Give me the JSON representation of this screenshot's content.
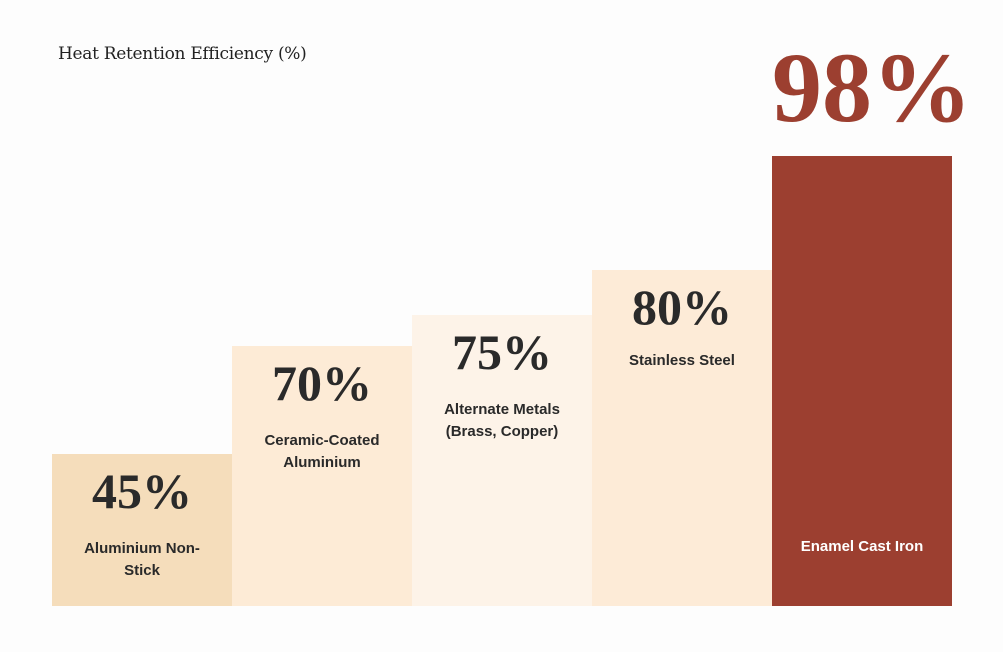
{
  "chart_data": {
    "type": "bar",
    "title": "Heat Retention Efficiency (%)",
    "categories": [
      "Aluminium Non-Stick",
      "Ceramic-Coated Aluminium",
      "Alternate Metals (Brass, Copper)",
      "Stainless Steel",
      "Enamel Cast Iron"
    ],
    "values": [
      45,
      70,
      75,
      80,
      98
    ],
    "value_labels": [
      "45%",
      "70%",
      "75%",
      "80%",
      "98%"
    ],
    "colors": [
      "#F5DDBB",
      "#FDEBD6",
      "#FDF3E8",
      "#FDEBD7",
      "#9C3F30"
    ],
    "xlabel": "",
    "ylabel": ""
  }
}
